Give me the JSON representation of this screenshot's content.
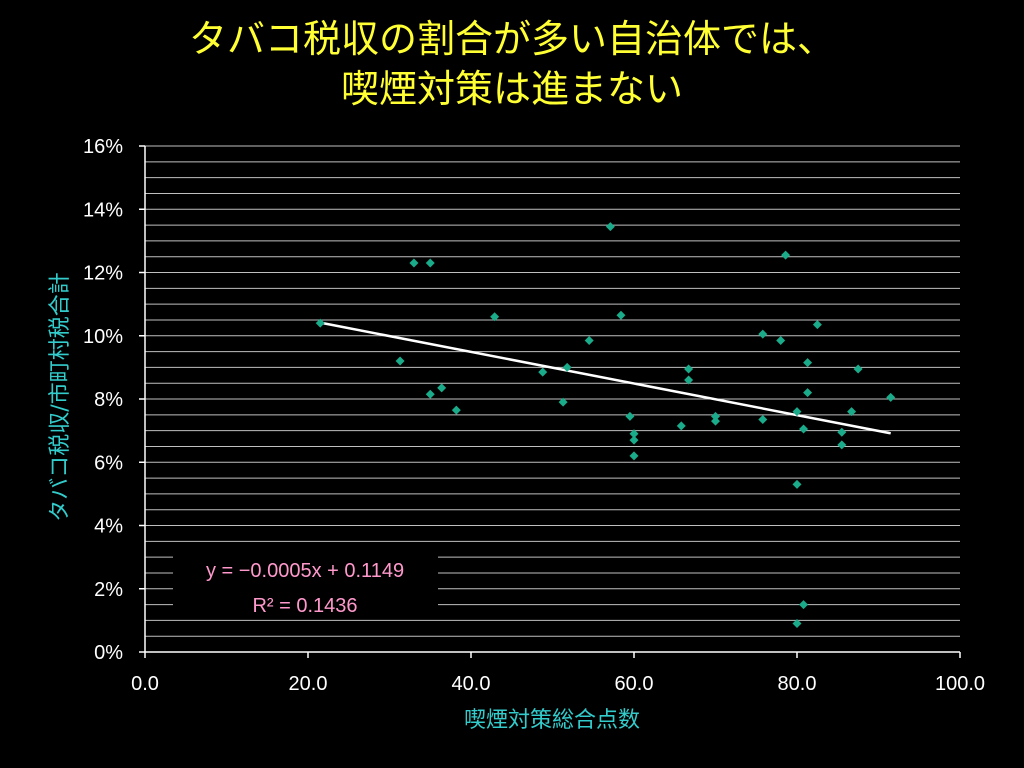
{
  "title": {
    "line1": "タバコ税収の割合が多い自治体では、",
    "line2": "喫煙対策は進まない"
  },
  "colors": {
    "title": "#ffff33",
    "axis_title": "#33cccc",
    "points": "#1aab8a",
    "trendline": "#ffffff",
    "equation": "#ff99cc",
    "grid": "#bfbfbf"
  },
  "chart_data": {
    "type": "scatter",
    "xlabel": "喫煙対策総合点数",
    "ylabel": "タバコ税収/市町村税合計",
    "xlim": [
      0,
      100
    ],
    "ylim": [
      0,
      0.16
    ],
    "x_ticks": [
      0,
      20,
      40,
      60,
      80,
      100
    ],
    "x_tick_labels": [
      "0.0",
      "20.0",
      "40.0",
      "60.0",
      "80.0",
      "100.0"
    ],
    "y_ticks": [
      0,
      0.02,
      0.04,
      0.06,
      0.08,
      0.1,
      0.12,
      0.14,
      0.16
    ],
    "y_tick_labels": [
      "0%",
      "2%",
      "4%",
      "6%",
      "8%",
      "10%",
      "12%",
      "14%",
      "16%"
    ],
    "grid": true,
    "legend": "none",
    "points": [
      {
        "x": 21.5,
        "y": 0.104
      },
      {
        "x": 31.3,
        "y": 0.092
      },
      {
        "x": 33.0,
        "y": 0.123
      },
      {
        "x": 35.0,
        "y": 0.123
      },
      {
        "x": 35.0,
        "y": 0.0815
      },
      {
        "x": 36.4,
        "y": 0.0835
      },
      {
        "x": 38.2,
        "y": 0.0765
      },
      {
        "x": 42.9,
        "y": 0.106
      },
      {
        "x": 48.8,
        "y": 0.0885
      },
      {
        "x": 51.3,
        "y": 0.079
      },
      {
        "x": 51.8,
        "y": 0.09
      },
      {
        "x": 54.5,
        "y": 0.0985
      },
      {
        "x": 57.1,
        "y": 0.1345
      },
      {
        "x": 58.4,
        "y": 0.1065
      },
      {
        "x": 59.5,
        "y": 0.0745
      },
      {
        "x": 60.0,
        "y": 0.069
      },
      {
        "x": 60.0,
        "y": 0.067
      },
      {
        "x": 60.0,
        "y": 0.062
      },
      {
        "x": 65.8,
        "y": 0.0715
      },
      {
        "x": 66.7,
        "y": 0.0895
      },
      {
        "x": 66.7,
        "y": 0.086
      },
      {
        "x": 70.0,
        "y": 0.0745
      },
      {
        "x": 70.0,
        "y": 0.073
      },
      {
        "x": 75.8,
        "y": 0.1005
      },
      {
        "x": 75.8,
        "y": 0.0735
      },
      {
        "x": 78.0,
        "y": 0.0985
      },
      {
        "x": 78.6,
        "y": 0.1255
      },
      {
        "x": 80.0,
        "y": 0.076
      },
      {
        "x": 80.0,
        "y": 0.053
      },
      {
        "x": 80.0,
        "y": 0.009
      },
      {
        "x": 80.8,
        "y": 0.0705
      },
      {
        "x": 80.8,
        "y": 0.015
      },
      {
        "x": 81.3,
        "y": 0.0915
      },
      {
        "x": 81.3,
        "y": 0.082
      },
      {
        "x": 82.5,
        "y": 0.1035
      },
      {
        "x": 85.5,
        "y": 0.0695
      },
      {
        "x": 85.5,
        "y": 0.0655
      },
      {
        "x": 86.7,
        "y": 0.076
      },
      {
        "x": 87.5,
        "y": 0.0895
      },
      {
        "x": 91.5,
        "y": 0.0805
      }
    ],
    "trendline": {
      "type": "linear",
      "slope": -0.0005,
      "intercept": 0.1149,
      "x_range": [
        21.5,
        91.5
      ]
    },
    "annotations": {
      "equation": "y = −0.0005x + 0.1149",
      "r_squared": "R² = 0.1436"
    }
  }
}
